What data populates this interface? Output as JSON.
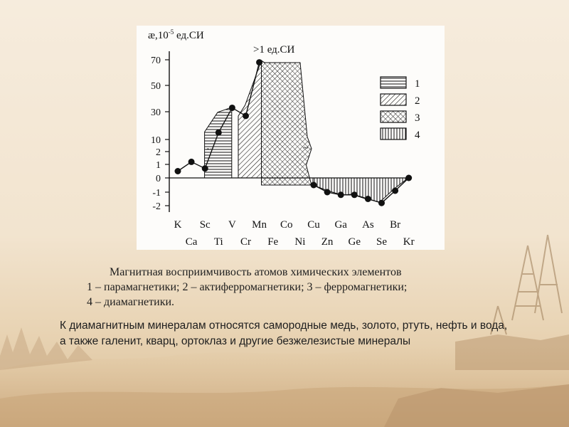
{
  "slide": {
    "caption_line1": "Магнитная восприимчивость атомов химических элементов",
    "caption_line2": "1 – парамагнетики; 2 – актиферромагнетики; 3 – ферромагнетики;",
    "caption_line3": "4 – диамагнетики.",
    "body_text": "К диамагнитным минералам относятся самородные медь, золото, ртуть, нефть и вода, а также галенит, кварц, ортоклаз и другие безжелезистые минералы"
  },
  "colors": {
    "background": "#f4e8d6",
    "figure_bg": "#fdfcfa",
    "ink": "#111111",
    "text": "#1e1e1e"
  },
  "chart_data": {
    "type": "line",
    "y_label_symbol": "æ,10",
    "y_label_exp": "-5",
    "y_label_unit": " ед.СИ",
    "annotation": ">1 ед.СИ",
    "y_ticks": [
      "70",
      "50",
      "30",
      "10",
      "2",
      "1",
      "0",
      "-1",
      "-2"
    ],
    "x_labels_top": [
      "K",
      "Sc",
      "V",
      "Mn",
      "Co",
      "Cu",
      "Ga",
      "As",
      "Br"
    ],
    "x_labels_bottom": [
      "Ca",
      "Ti",
      "Cr",
      "Fe",
      "Ni",
      "Zn",
      "Ge",
      "Se",
      "Kr"
    ],
    "elements": [
      "K",
      "Ca",
      "Sc",
      "Ti",
      "V",
      "Cr",
      "Mn",
      "Fe",
      "Co",
      "Ni",
      "Cu",
      "Zn",
      "Ga",
      "Ge",
      "As",
      "Se",
      "Br",
      "Kr"
    ],
    "values": [
      0.5,
      1.2,
      0.7,
      15,
      33,
      27,
      68,
      null,
      null,
      null,
      -0.5,
      -1.0,
      -1.2,
      -1.2,
      -1.5,
      -1.8,
      -0.9,
      0.0
    ],
    "regions": [
      {
        "category": "1",
        "from": "Ti",
        "to": "V"
      },
      {
        "category": "2",
        "from": "Cr",
        "to": "Mn"
      },
      {
        "category": "3",
        "from": "Mn",
        "to": "Ni"
      },
      {
        "category": "4",
        "from": "Cu",
        "to": "Kr"
      }
    ],
    "legend": [
      "1",
      "2",
      "3",
      "4"
    ],
    "legend_position": "right"
  }
}
